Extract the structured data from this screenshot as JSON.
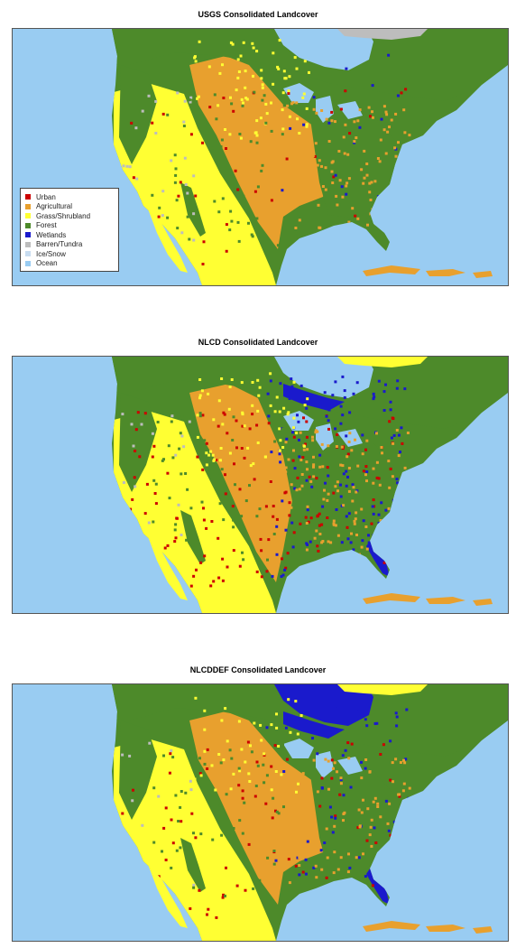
{
  "maps": [
    {
      "title": "USGS Consolidated Landcover",
      "variant": "usgs",
      "show_legend": true
    },
    {
      "title": "NLCD Consolidated Landcover",
      "variant": "nlcd",
      "show_legend": false
    },
    {
      "title": "NLCDDEF Consolidated Landcover",
      "variant": "nlcddef",
      "show_legend": false
    }
  ],
  "legend": [
    {
      "label": "Urban",
      "color": "#cc0000"
    },
    {
      "label": "Agricultural",
      "color": "#e8a02e"
    },
    {
      "label": "Grass/Shrubland",
      "color": "#ffff33"
    },
    {
      "label": "Forest",
      "color": "#4d8a2a"
    },
    {
      "label": "Wetlands",
      "color": "#1a1acc"
    },
    {
      "label": "Barren/Tundra",
      "color": "#bdbdbd"
    },
    {
      "label": "Ice/Snow",
      "color": "#c8dcf0"
    },
    {
      "label": "Ocean",
      "color": "#99ccf2"
    }
  ]
}
